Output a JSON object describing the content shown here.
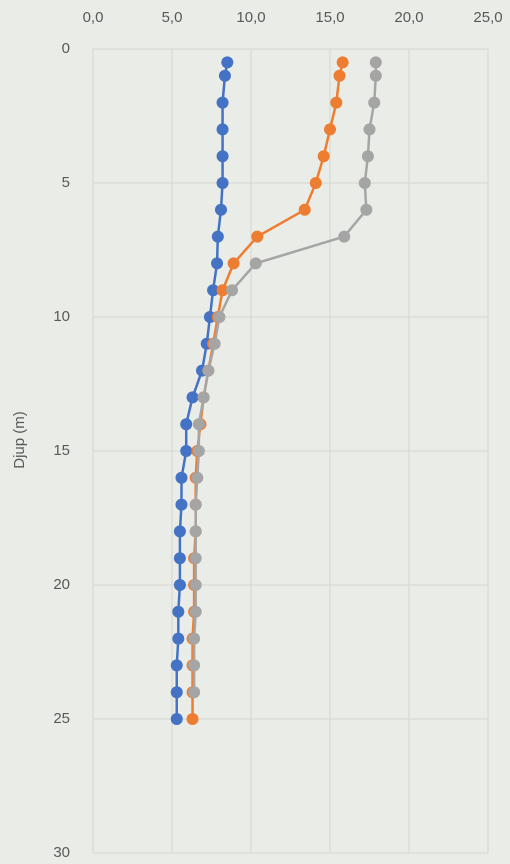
{
  "chart_data": {
    "type": "line",
    "y_label": "Djup (m)",
    "y": [
      0.5,
      1,
      2,
      3,
      4,
      5,
      6,
      7,
      8,
      9,
      10,
      11,
      12,
      13,
      14,
      15,
      16,
      17,
      18,
      19,
      20,
      21,
      22,
      23,
      24,
      25
    ],
    "series": [
      {
        "color": "#4472c4",
        "values": [
          8.5,
          8.35,
          8.2,
          8.2,
          8.2,
          8.2,
          8.1,
          7.9,
          7.85,
          7.6,
          7.4,
          7.2,
          6.9,
          6.3,
          5.9,
          5.9,
          5.6,
          5.6,
          5.5,
          5.5,
          5.5,
          5.4,
          5.4,
          5.3,
          5.3,
          5.3
        ]
      },
      {
        "color": "#ed7d31",
        "values": [
          15.8,
          15.6,
          15.4,
          15.0,
          14.6,
          14.1,
          13.4,
          10.4,
          8.9,
          8.2,
          7.9,
          7.6,
          7.3,
          7.0,
          6.8,
          6.6,
          6.5,
          6.5,
          6.5,
          6.4,
          6.4,
          6.4,
          6.3,
          6.3,
          6.3,
          6.3
        ]
      },
      {
        "color": "#a5a5a5",
        "values": [
          17.9,
          17.9,
          17.8,
          17.5,
          17.4,
          17.2,
          17.3,
          15.9,
          10.3,
          8.8,
          8.0,
          7.7,
          7.3,
          7.0,
          6.7,
          6.7,
          6.6,
          6.5,
          6.5,
          6.5,
          6.5,
          6.5,
          6.4,
          6.4,
          6.4,
          null
        ]
      }
    ],
    "xlim": [
      0,
      25
    ],
    "xticks": [
      {
        "value": 0,
        "label": "0,0"
      },
      {
        "value": 5,
        "label": "5,0"
      },
      {
        "value": 10,
        "label": "10,0"
      },
      {
        "value": 15,
        "label": "15,0"
      },
      {
        "value": 20,
        "label": "20,0"
      },
      {
        "value": 25,
        "label": "25,0"
      }
    ],
    "ylim": [
      0,
      30
    ],
    "yticks": [
      0,
      5,
      10,
      15,
      20,
      25,
      30
    ],
    "y_inverted": true,
    "grid": true
  }
}
